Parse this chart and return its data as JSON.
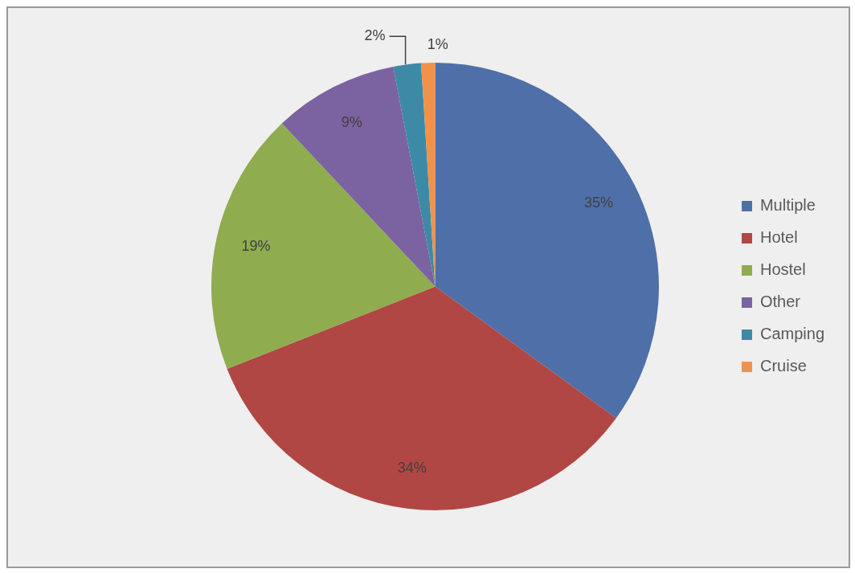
{
  "chart_data": {
    "type": "pie",
    "categories": [
      "Multiple",
      "Hotel",
      "Hostel",
      "Other",
      "Camping",
      "Cruise"
    ],
    "values": [
      35,
      34,
      19,
      9,
      2,
      1
    ],
    "colors": [
      "#4f6fa8",
      "#b04744",
      "#8fac4f",
      "#7b62a0",
      "#3d8aa6",
      "#f0924a"
    ],
    "value_labels": [
      "35%",
      "34%",
      "19%",
      "9%",
      "2%",
      "1%"
    ],
    "legend": "right"
  }
}
